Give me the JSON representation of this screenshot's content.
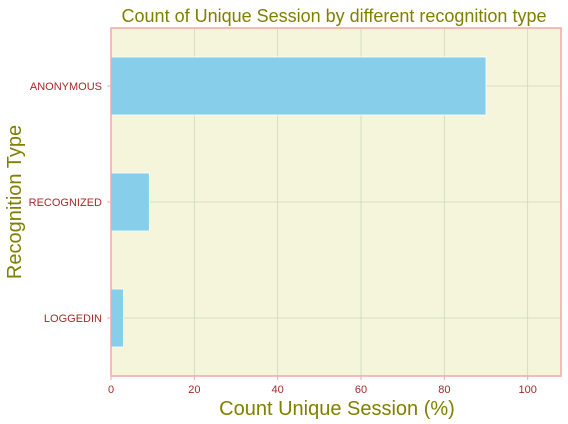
{
  "chart_data": {
    "type": "bar",
    "orientation": "horizontal",
    "title": "Count of Unique Session by different recognition type",
    "xlabel": "Count Unique Session (%)",
    "ylabel": "Recognition Type",
    "categories": [
      "ANONYMOUS",
      "RECOGNIZED",
      "LOGGEDIN"
    ],
    "values": [
      90,
      9.2,
      3
    ],
    "xlim": [
      0,
      108
    ],
    "xticks": [
      0,
      20,
      40,
      60,
      80,
      100
    ],
    "xtick_labels": [
      "0",
      "20",
      "40",
      "60",
      "80",
      "100"
    ],
    "grid": true,
    "colors": {
      "bar": "#87ceeb",
      "plot_background": "#f5f5dc",
      "frame": "#f4a7a7",
      "title": "#808000",
      "axis_label": "#808000",
      "tick_label": "#a52a2a",
      "grid": "#c8dcb4"
    }
  }
}
